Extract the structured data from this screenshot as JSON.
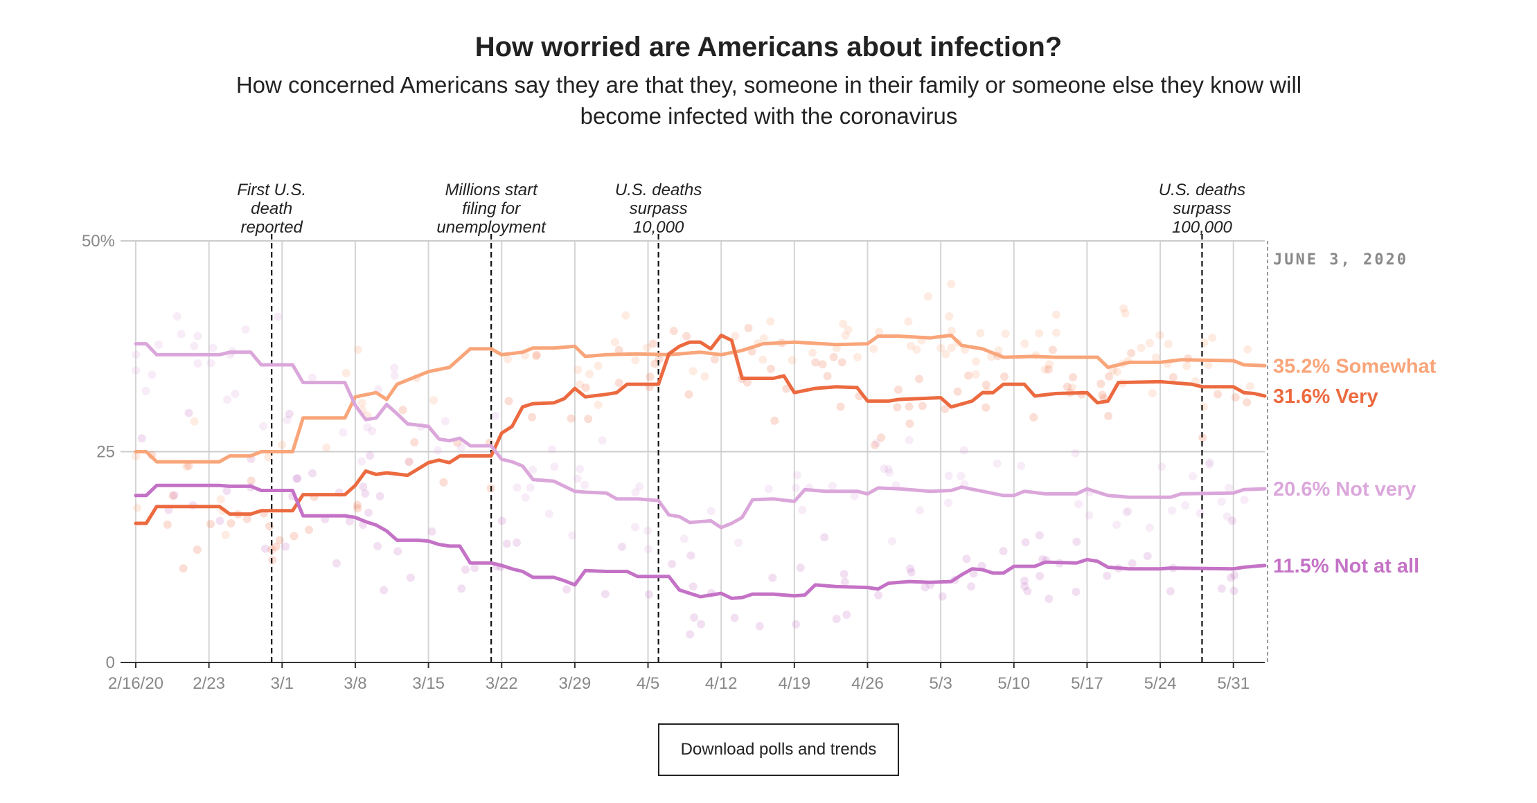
{
  "header": {
    "title": "How worried are Americans about infection?",
    "subtitle": "How concerned Americans say they are that they, someone in their family or someone else they know will become infected with the coronavirus"
  },
  "download_label": "Download polls and trends",
  "chart_data": {
    "type": "line",
    "title": "How worried are Americans about infection?",
    "subtitle": "How concerned Americans say they are that they, someone in their family or someone else they know will become infected with the coronavirus",
    "date_label": "JUNE 3, 2020",
    "ylim": [
      0,
      50
    ],
    "y_ticks": [
      {
        "value": 0,
        "label": "0"
      },
      {
        "value": 25,
        "label": "25"
      },
      {
        "value": 50,
        "label": "50%"
      }
    ],
    "x_ticks": [
      {
        "day": 0,
        "label": "2/16/20"
      },
      {
        "day": 7,
        "label": "2/23"
      },
      {
        "day": 14,
        "label": "3/1"
      },
      {
        "day": 21,
        "label": "3/8"
      },
      {
        "day": 28,
        "label": "3/15"
      },
      {
        "day": 35,
        "label": "3/22"
      },
      {
        "day": 42,
        "label": "3/29"
      },
      {
        "day": 49,
        "label": "4/5"
      },
      {
        "day": 56,
        "label": "4/12"
      },
      {
        "day": 63,
        "label": "4/19"
      },
      {
        "day": 70,
        "label": "4/26"
      },
      {
        "day": 77,
        "label": "5/3"
      },
      {
        "day": 84,
        "label": "5/10"
      },
      {
        "day": 91,
        "label": "5/17"
      },
      {
        "day": 98,
        "label": "5/24"
      },
      {
        "day": 105,
        "label": "5/31"
      }
    ],
    "x_range_days": [
      0,
      108
    ],
    "annotations": [
      {
        "day": 13,
        "lines": [
          "First U.S.",
          "death",
          "reported"
        ]
      },
      {
        "day": 34,
        "lines": [
          "Millions start",
          "filing for",
          "unemployment"
        ]
      },
      {
        "day": 50,
        "lines": [
          "U.S. deaths",
          "surpass",
          "10,000"
        ]
      },
      {
        "day": 102,
        "lines": [
          "U.S. deaths",
          "surpass",
          "100,000"
        ]
      }
    ],
    "series": [
      {
        "name": "Somewhat",
        "end_label": "35.2% Somewhat",
        "color": "#f9a57a",
        "points": [
          [
            0,
            25
          ],
          [
            1,
            25
          ],
          [
            2,
            23.8
          ],
          [
            8,
            23.8
          ],
          [
            9,
            24.5
          ],
          [
            11,
            24.5
          ],
          [
            12,
            25
          ],
          [
            15,
            25
          ],
          [
            16,
            29
          ],
          [
            20,
            29
          ],
          [
            21,
            31.5
          ],
          [
            23,
            32
          ],
          [
            24,
            31.2
          ],
          [
            25,
            33
          ],
          [
            27,
            34
          ],
          [
            28,
            34.5
          ],
          [
            30,
            35
          ],
          [
            32,
            37.2
          ],
          [
            34,
            37.2
          ],
          [
            35,
            36.5
          ],
          [
            37,
            36.8
          ],
          [
            38,
            37.3
          ],
          [
            40,
            37.3
          ],
          [
            42,
            37.5
          ],
          [
            43,
            36.3
          ],
          [
            45,
            36.5
          ],
          [
            48,
            36.6
          ],
          [
            51,
            36.5
          ],
          [
            54,
            36.8
          ],
          [
            56,
            36.5
          ],
          [
            58,
            37
          ],
          [
            60,
            37.8
          ],
          [
            63,
            38
          ],
          [
            67,
            37.7
          ],
          [
            70,
            37.8
          ],
          [
            71,
            38.7
          ],
          [
            73,
            38.7
          ],
          [
            76,
            38.5
          ],
          [
            78,
            38.8
          ],
          [
            79,
            37.6
          ],
          [
            81,
            37.2
          ],
          [
            83,
            36.2
          ],
          [
            86,
            36.3
          ],
          [
            88,
            36.2
          ],
          [
            92,
            36.2
          ],
          [
            93,
            35
          ],
          [
            95,
            35.6
          ],
          [
            98,
            35.6
          ],
          [
            100,
            35.9
          ],
          [
            105,
            35.8
          ],
          [
            106,
            35.3
          ],
          [
            108,
            35.2
          ]
        ]
      },
      {
        "name": "Very",
        "end_label": "31.6% Very",
        "color": "#ec6a40",
        "points": [
          [
            0,
            16.5
          ],
          [
            1,
            16.5
          ],
          [
            2,
            18.5
          ],
          [
            8,
            18.5
          ],
          [
            9,
            17.6
          ],
          [
            11,
            17.6
          ],
          [
            12,
            18
          ],
          [
            15,
            18
          ],
          [
            16,
            19.9
          ],
          [
            20,
            19.9
          ],
          [
            21,
            21
          ],
          [
            22,
            22.7
          ],
          [
            23,
            22.3
          ],
          [
            24,
            22.5
          ],
          [
            26,
            22.2
          ],
          [
            28,
            23.7
          ],
          [
            29,
            24
          ],
          [
            30,
            23.7
          ],
          [
            31,
            24.5
          ],
          [
            34,
            24.5
          ],
          [
            35,
            27.2
          ],
          [
            36,
            28
          ],
          [
            37,
            30.3
          ],
          [
            38,
            30.7
          ],
          [
            40,
            30.8
          ],
          [
            41,
            31.3
          ],
          [
            42,
            32.5
          ],
          [
            43,
            31.5
          ],
          [
            45,
            31.8
          ],
          [
            46,
            32
          ],
          [
            47,
            33
          ],
          [
            50,
            33
          ],
          [
            51,
            36.6
          ],
          [
            52,
            37.5
          ],
          [
            53,
            38
          ],
          [
            54,
            38
          ],
          [
            55,
            37.2
          ],
          [
            56,
            38.8
          ],
          [
            57,
            38.2
          ],
          [
            58,
            33.7
          ],
          [
            61,
            33.7
          ],
          [
            62,
            34
          ],
          [
            63,
            32
          ],
          [
            65,
            32.5
          ],
          [
            67,
            32.7
          ],
          [
            69,
            32.6
          ],
          [
            70,
            31
          ],
          [
            72,
            31
          ],
          [
            73,
            31.2
          ],
          [
            77,
            31.4
          ],
          [
            78,
            30.3
          ],
          [
            80,
            31
          ],
          [
            81,
            32
          ],
          [
            82,
            32
          ],
          [
            83,
            33
          ],
          [
            85,
            33
          ],
          [
            86,
            31.6
          ],
          [
            88,
            31.9
          ],
          [
            91,
            32
          ],
          [
            92,
            30.8
          ],
          [
            93,
            31
          ],
          [
            94,
            33.2
          ],
          [
            98,
            33.3
          ],
          [
            101,
            33
          ],
          [
            102,
            32.7
          ],
          [
            105,
            32.7
          ],
          [
            106,
            32
          ],
          [
            107,
            31.9
          ],
          [
            108,
            31.6
          ]
        ]
      },
      {
        "name": "Not very",
        "end_label": "20.6% Not very",
        "color": "#dba7db",
        "points": [
          [
            0,
            37.8
          ],
          [
            1,
            37.8
          ],
          [
            2,
            36.5
          ],
          [
            8,
            36.5
          ],
          [
            9,
            36.8
          ],
          [
            11,
            36.8
          ],
          [
            12,
            35.3
          ],
          [
            15,
            35.3
          ],
          [
            16,
            33.2
          ],
          [
            20,
            33.2
          ],
          [
            21,
            30.5
          ],
          [
            22,
            28.8
          ],
          [
            23,
            29
          ],
          [
            24,
            30.6
          ],
          [
            25,
            29.5
          ],
          [
            26,
            28.3
          ],
          [
            28,
            28
          ],
          [
            29,
            26.5
          ],
          [
            30,
            26.3
          ],
          [
            31,
            26.6
          ],
          [
            32,
            25.7
          ],
          [
            34,
            25.7
          ],
          [
            35,
            24.1
          ],
          [
            36,
            23.8
          ],
          [
            37,
            23.3
          ],
          [
            38,
            21.7
          ],
          [
            40,
            21.5
          ],
          [
            42,
            20.3
          ],
          [
            43,
            20.2
          ],
          [
            45,
            20.1
          ],
          [
            46,
            19.4
          ],
          [
            48,
            19.4
          ],
          [
            50,
            19.2
          ],
          [
            51,
            17.5
          ],
          [
            52,
            17.3
          ],
          [
            53,
            16.6
          ],
          [
            55,
            16.8
          ],
          [
            56,
            16
          ],
          [
            57,
            16.5
          ],
          [
            58,
            17.2
          ],
          [
            59,
            19.3
          ],
          [
            61,
            19.4
          ],
          [
            63,
            19.1
          ],
          [
            64,
            20.5
          ],
          [
            66,
            20.3
          ],
          [
            69,
            20.3
          ],
          [
            70,
            20
          ],
          [
            71,
            20.7
          ],
          [
            73,
            20.6
          ],
          [
            76,
            20.3
          ],
          [
            78,
            20.4
          ],
          [
            79,
            20.8
          ],
          [
            81,
            20.3
          ],
          [
            83,
            19.8
          ],
          [
            84,
            19.8
          ],
          [
            85,
            20.3
          ],
          [
            87,
            20
          ],
          [
            90,
            20
          ],
          [
            91,
            20.6
          ],
          [
            92,
            20.2
          ],
          [
            93,
            19.8
          ],
          [
            95,
            19.6
          ],
          [
            99,
            19.6
          ],
          [
            100,
            20
          ],
          [
            105,
            20.1
          ],
          [
            106,
            20.5
          ],
          [
            108,
            20.6
          ]
        ]
      },
      {
        "name": "Not at all",
        "end_label": "11.5% Not at all",
        "color": "#c472c6",
        "points": [
          [
            0,
            19.8
          ],
          [
            1,
            19.8
          ],
          [
            2,
            21
          ],
          [
            8,
            21
          ],
          [
            9,
            20.9
          ],
          [
            11,
            20.9
          ],
          [
            12,
            20.4
          ],
          [
            15,
            20.4
          ],
          [
            16,
            17.4
          ],
          [
            20,
            17.4
          ],
          [
            21,
            17.2
          ],
          [
            22,
            16.7
          ],
          [
            23,
            16.3
          ],
          [
            24,
            15.6
          ],
          [
            25,
            14.5
          ],
          [
            27,
            14.5
          ],
          [
            28,
            14.4
          ],
          [
            29,
            14
          ],
          [
            30,
            13.8
          ],
          [
            31,
            13.8
          ],
          [
            32,
            11.8
          ],
          [
            34,
            11.8
          ],
          [
            35,
            11.5
          ],
          [
            36,
            11.1
          ],
          [
            37,
            10.8
          ],
          [
            38,
            10.1
          ],
          [
            40,
            10.1
          ],
          [
            41,
            9.7
          ],
          [
            42,
            9.2
          ],
          [
            43,
            10.9
          ],
          [
            45,
            10.8
          ],
          [
            47,
            10.8
          ],
          [
            48,
            10.2
          ],
          [
            51,
            10.2
          ],
          [
            52,
            8.6
          ],
          [
            53,
            8.2
          ],
          [
            54,
            7.8
          ],
          [
            55,
            8
          ],
          [
            56,
            8.2
          ],
          [
            57,
            7.6
          ],
          [
            58,
            7.7
          ],
          [
            59,
            8.1
          ],
          [
            61,
            8.1
          ],
          [
            63,
            7.9
          ],
          [
            64,
            8
          ],
          [
            65,
            9.2
          ],
          [
            67,
            9
          ],
          [
            70,
            8.9
          ],
          [
            71,
            8.7
          ],
          [
            72,
            9.4
          ],
          [
            74,
            9.6
          ],
          [
            76,
            9.5
          ],
          [
            78,
            9.6
          ],
          [
            79,
            10.4
          ],
          [
            80,
            11.1
          ],
          [
            81,
            11
          ],
          [
            82,
            10.6
          ],
          [
            83,
            10.6
          ],
          [
            84,
            11.4
          ],
          [
            86,
            11.4
          ],
          [
            87,
            11.9
          ],
          [
            90,
            11.8
          ],
          [
            91,
            12.2
          ],
          [
            92,
            12
          ],
          [
            93,
            11.3
          ],
          [
            95,
            11.1
          ],
          [
            98,
            11.1
          ],
          [
            99,
            11.2
          ],
          [
            105,
            11.1
          ],
          [
            106,
            11.3
          ],
          [
            108,
            11.5
          ]
        ]
      }
    ]
  }
}
